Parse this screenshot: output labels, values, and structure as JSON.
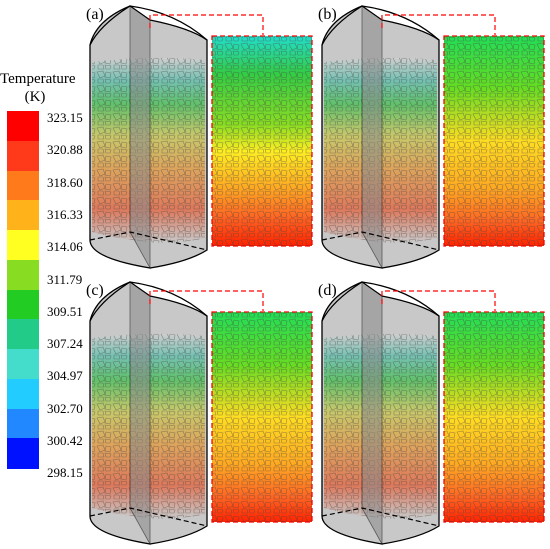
{
  "legend": {
    "title_line1": "Temperature",
    "title_line2": "(K)",
    "ticks": [
      "323.15",
      "320.88",
      "318.60",
      "316.33",
      "314.06",
      "311.79",
      "309.51",
      "307.24",
      "304.97",
      "302.70",
      "300.42",
      "298.15"
    ],
    "colors": [
      "#ff0000",
      "#ff3a1a",
      "#ff7a1a",
      "#ffb21a",
      "#ffff22",
      "#88dd22",
      "#22cc22",
      "#22cc88",
      "#44ddcc",
      "#22ccff",
      "#2288ff",
      "#0011ff"
    ]
  },
  "panels": [
    {
      "label": "(a)"
    },
    {
      "label": "(b)"
    },
    {
      "label": "(c)"
    },
    {
      "label": "(d)"
    }
  ],
  "colors": {
    "cylinder_fill": "#c8c8c8",
    "dashed_outline": "#ff0000",
    "hot": "#ff3300",
    "warm": "#ffcc00",
    "mid": "#33cc33",
    "cool": "#33ddcc"
  }
}
